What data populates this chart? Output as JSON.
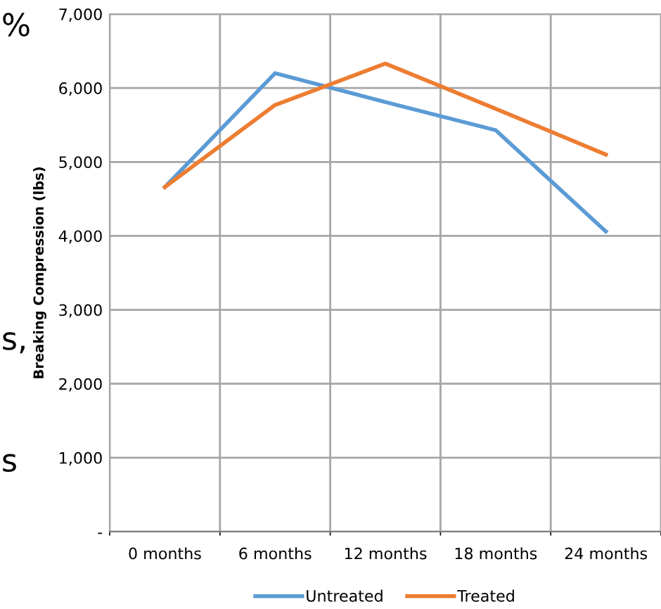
{
  "chart_data": {
    "type": "line",
    "ylabel": "Breaking Compression (lbs)",
    "categories": [
      "0 months",
      "6 months",
      "12 months",
      "18 months",
      "24 months"
    ],
    "series": [
      {
        "name": "Untreated",
        "color": "#5b9bd5",
        "values": [
          4660,
          6200,
          5810,
          5430,
          4060
        ]
      },
      {
        "name": "Treated",
        "color": "#ed7d31",
        "values": [
          4660,
          5770,
          6330,
          5720,
          5100
        ]
      }
    ],
    "ylim": [
      0,
      7000
    ],
    "yticks": [
      {
        "value": 0,
        "label": "-"
      },
      {
        "value": 1000,
        "label": "1,000"
      },
      {
        "value": 2000,
        "label": "2,000"
      },
      {
        "value": 3000,
        "label": "3,000"
      },
      {
        "value": 4000,
        "label": "4,000"
      },
      {
        "value": 5000,
        "label": "5,000"
      },
      {
        "value": 6000,
        "label": "6,000"
      },
      {
        "value": 7000,
        "label": "7,000"
      }
    ],
    "grid": true,
    "legend": "bottom",
    "marker": "none",
    "line_style": "solid",
    "annotations": [
      "%",
      "s,",
      "s"
    ]
  }
}
